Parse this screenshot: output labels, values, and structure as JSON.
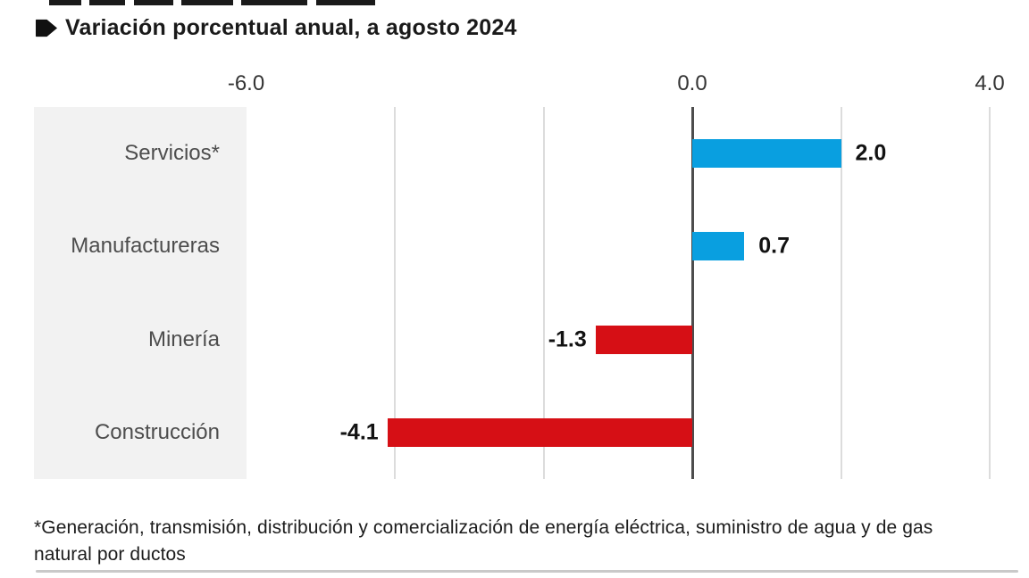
{
  "header": {
    "subtitle": "Variación porcentual anual, a agosto 2024"
  },
  "chart_data": {
    "type": "bar",
    "orientation": "horizontal",
    "title": "Variación porcentual anual, a agosto 2024",
    "categories": [
      "Servicios*",
      "Manufactureras",
      "Minería",
      "Construcción"
    ],
    "values": [
      2.0,
      0.7,
      -1.3,
      -4.1
    ],
    "value_labels": [
      "2.0",
      "0.7",
      "-1.3",
      "-4.1"
    ],
    "xlabel": "",
    "ylabel": "",
    "xlim": [
      -6.0,
      4.0
    ],
    "x_ticks_shown": [
      {
        "label": "-6.0",
        "value": -6.0
      },
      {
        "label": "0.0",
        "value": 0.0
      },
      {
        "label": "4.0",
        "value": 4.0
      }
    ],
    "gridline_values": [
      -4.0,
      -2.0,
      2.0,
      4.0
    ],
    "gridline_step": 2.0,
    "grid": true,
    "legend": false,
    "positive_color": "#099fe0",
    "negative_color": "#d60f15"
  },
  "footnote": {
    "line1": "*Generación, transmisión, distribución y comercialización de energía eléctrica, suministro de agua y de gas",
    "line2": "natural por ductos"
  },
  "colors": {
    "positive_bar": "#099fe0",
    "negative_bar": "#d60f15",
    "category_panel": "#f2f2f2",
    "gridline": "#dcdcdc",
    "zero_line": "#4d4d4d",
    "text_dark": "#1a1a1a",
    "category_text": "#4d4d4d",
    "divider": "#c9c9c9"
  }
}
